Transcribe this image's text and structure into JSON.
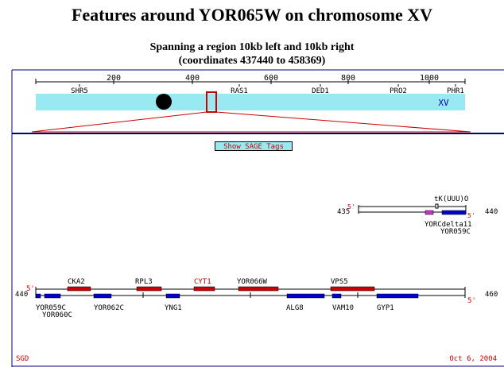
{
  "title": "Features around YOR065W on chromosome XV",
  "subtitle_line1": "Spanning a region 10kb left and 10kb right",
  "subtitle_line2": "(coordinates 437440 to 458369)",
  "overview": {
    "ticks": [
      "200",
      "400",
      "600",
      "800",
      "1000"
    ],
    "gene_labels": [
      "SHR5",
      "RAS1",
      "DED1",
      "PRO2",
      "PHR1"
    ],
    "chromosome_label": "XV"
  },
  "sage_button_label": "Show SAGE Tags",
  "upper_track": {
    "left_coord": "435",
    "right_coord": "440",
    "five_prime_top": "5'",
    "five_prime_bottom": "5'",
    "feature_labels": [
      "tK(UUU)O",
      "YORCdelta11",
      "YOR059C"
    ]
  },
  "main_track": {
    "left_coord": "440",
    "right_coord": "460",
    "five_prime_top": "5'",
    "five_prime_bottom": "5'",
    "top_labels": [
      "CKA2",
      "RPL3",
      "CYT1",
      "YOR066W",
      "VPS5"
    ],
    "bottom_labels": [
      "YOR059C",
      "YOR060C",
      "YOR062C",
      "YNG1",
      "ALG8",
      "VAM10",
      "GYP1"
    ]
  },
  "footer": {
    "left": "SGD",
    "right": "Oct 6, 2004"
  },
  "colors": {
    "chromosome": "#99e9f3",
    "watson_feature": "#cc0000",
    "crick_feature": "#0000cc",
    "delta_feature": "#cc33cc",
    "frame": "#000080",
    "accent_red": "#cc0000"
  }
}
